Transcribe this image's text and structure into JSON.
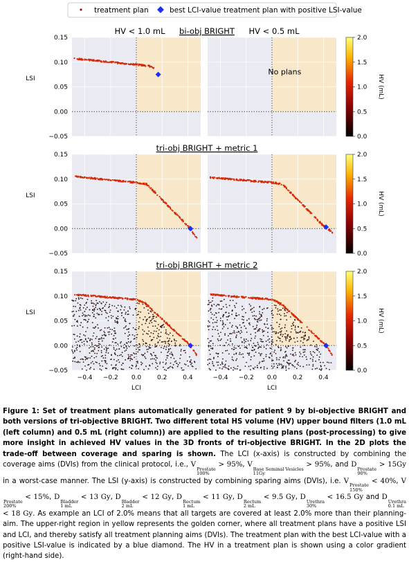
{
  "legend": {
    "plan_label": "treatment plan",
    "best_label": "best LCI-value treatment plan with positive LSI-value"
  },
  "rows": [
    {
      "title": "bi-obj BRIGHT",
      "left_header": "HV < 1.0 mL",
      "right_header": "HV < 0.5 mL",
      "empty_text": "No plans"
    },
    {
      "title": "tri-obj BRIGHT + metric 1"
    },
    {
      "title": "tri-obj BRIGHT + metric 2"
    }
  ],
  "axes": {
    "ylabel": "LSI",
    "xlabel": "LCI",
    "yticks": [
      "0.15",
      "0.10",
      "0.05",
      "0.00",
      "−0.05"
    ],
    "xticks": [
      "−0.4",
      "−0.2",
      "0.0",
      "0.2",
      "0.4"
    ],
    "colorbar_label": "HV (mL)",
    "colorbar_ticks": [
      "2.0",
      "1.5",
      "1.0",
      "0.5",
      "0.0"
    ]
  },
  "colors": {
    "plot_bg": "#e9eaf2",
    "golden_corner": "#f8e7c9",
    "plan_red": "#d42b0c",
    "plan_dark": "#2a1410",
    "best_marker": "#1d2ff0"
  },
  "chart_data": [
    {
      "type": "scatter",
      "row": "bi-obj BRIGHT",
      "column": "HV < 1.0 mL",
      "xlim": [
        -0.5,
        0.5
      ],
      "ylim": [
        -0.05,
        0.15
      ],
      "front": [
        [
          -0.48,
          0.107
        ],
        [
          -0.2,
          0.1
        ],
        [
          0.0,
          0.095
        ],
        [
          0.1,
          0.092
        ],
        [
          0.14,
          0.088
        ]
      ],
      "best": [
        0.17,
        0.075
      ]
    },
    {
      "type": "scatter",
      "row": "bi-obj BRIGHT",
      "column": "HV < 0.5 mL",
      "xlim": [
        -0.5,
        0.5
      ],
      "ylim": [
        -0.05,
        0.15
      ],
      "front": [],
      "best": null
    },
    {
      "type": "scatter",
      "row": "tri-obj BRIGHT + metric 1",
      "column": "HV < 1.0 mL",
      "xlim": [
        -0.5,
        0.5
      ],
      "ylim": [
        -0.05,
        0.15
      ],
      "front": [
        [
          -0.48,
          0.105
        ],
        [
          0.0,
          0.093
        ],
        [
          0.08,
          0.09
        ],
        [
          0.42,
          0.0
        ],
        [
          0.47,
          -0.02
        ]
      ],
      "best": [
        0.42,
        0.0
      ]
    },
    {
      "type": "scatter",
      "row": "tri-obj BRIGHT + metric 1",
      "column": "HV < 0.5 mL",
      "xlim": [
        -0.5,
        0.5
      ],
      "ylim": [
        -0.05,
        0.15
      ],
      "front": [
        [
          -0.48,
          0.103
        ],
        [
          0.0,
          0.093
        ],
        [
          0.08,
          0.09
        ],
        [
          0.39,
          0.008
        ],
        [
          0.47,
          -0.008
        ]
      ],
      "best": [
        0.42,
        0.003
      ]
    },
    {
      "type": "scatter",
      "row": "tri-obj BRIGHT + metric 2",
      "column": "HV < 1.0 mL",
      "xlim": [
        -0.5,
        0.5
      ],
      "ylim": [
        -0.05,
        0.15
      ],
      "front": [
        [
          -0.48,
          0.103
        ],
        [
          0.0,
          0.093
        ],
        [
          0.07,
          0.085
        ],
        [
          0.42,
          0.0
        ],
        [
          0.47,
          -0.02
        ]
      ],
      "best": [
        0.42,
        0.0
      ]
    },
    {
      "type": "scatter",
      "row": "tri-obj BRIGHT + metric 2",
      "column": "HV < 0.5 mL",
      "xlim": [
        -0.5,
        0.5
      ],
      "ylim": [
        -0.05,
        0.15
      ],
      "front": [
        [
          -0.48,
          0.103
        ],
        [
          0.0,
          0.093
        ],
        [
          0.07,
          0.085
        ],
        [
          0.42,
          0.0
        ],
        [
          0.47,
          -0.02
        ]
      ],
      "best": [
        0.42,
        0.0
      ]
    }
  ],
  "caption": {
    "bold": "Figure 1: Set of treatment plans automatically generated for patient 9 by bi-objective BRIGHT and both versions of tri-objective BRIGHT. Two different total HS volume (HV) upper bound filters (1.0 mL (left column) and 0.5 mL (right column)) are applied to the resulting plans (post-processing) to give more insight in achieved HV values in the 3D fronts of tri-objective BRIGHT. In the 2D plots the trade-off between coverage and sparing is shown.",
    "t1": " The LCI (x-axis) is constructed by combining the coverage aims (DVIs) from the clinical protocol, i.e., ",
    "t2": ", ",
    "t3": ", and ",
    "t4": " in a worst-case manner. The LSI (y-axis) is constructed by combining sparing aims (DVIs), i.e. ",
    "t5": ", ",
    "t6": ", ",
    "t7": ", ",
    "t8": ", ",
    "t9": ", ",
    "t10": ", ",
    "t11": " and ",
    "t12": ". As example an LCI of 2.0% means that all targets are covered at least 2.0% more than their planning-aim. The upper-right region in yellow represents the golden corner, where all treatment plans have a positive LSI and LCI, and thereby satisfy all treatment planning aims (DVIs). The treatment plan with the best LCI-value with a positive LSI-value is indicated by a blue diamond. The HV in a treatment plan is shown using a color gradient (right-hand side).",
    "math": [
      {
        "sym": "V",
        "sup": "Prostate",
        "sub": "100%",
        "rest": " > 95%"
      },
      {
        "sym": "V",
        "sup": "Base Seminal Vesicles",
        "sub": "11Gy",
        "rest": " > 95%"
      },
      {
        "sym": "D",
        "sup": "Prostate",
        "sub": "90%",
        "rest": " > 15Gy"
      },
      {
        "sym": "V",
        "sup": "Prostate",
        "sub": "150%",
        "rest": " < 40%"
      },
      {
        "sym": "V",
        "sup": "Prostate",
        "sub": "200%",
        "rest": " < 15%"
      },
      {
        "sym": "D",
        "sup": "Bladder",
        "sub": "1 mL",
        "rest": " < 13 Gy"
      },
      {
        "sym": "D",
        "sup": "Bladder",
        "sub": "2 mL",
        "rest": " < 12 Gy"
      },
      {
        "sym": "D",
        "sup": "Rectum",
        "sub": "1 mL",
        "rest": " < 11 Gy"
      },
      {
        "sym": "D",
        "sup": "Rectum",
        "sub": "2 mL",
        "rest": " < 9.5 Gy"
      },
      {
        "sym": "D",
        "sup": "Urethra",
        "sub": "30%",
        "rest": " < 16.5 Gy"
      },
      {
        "sym": "D",
        "sup": "Urethra",
        "sub": "0.1 mL",
        "rest": " < 18 Gy"
      }
    ]
  }
}
